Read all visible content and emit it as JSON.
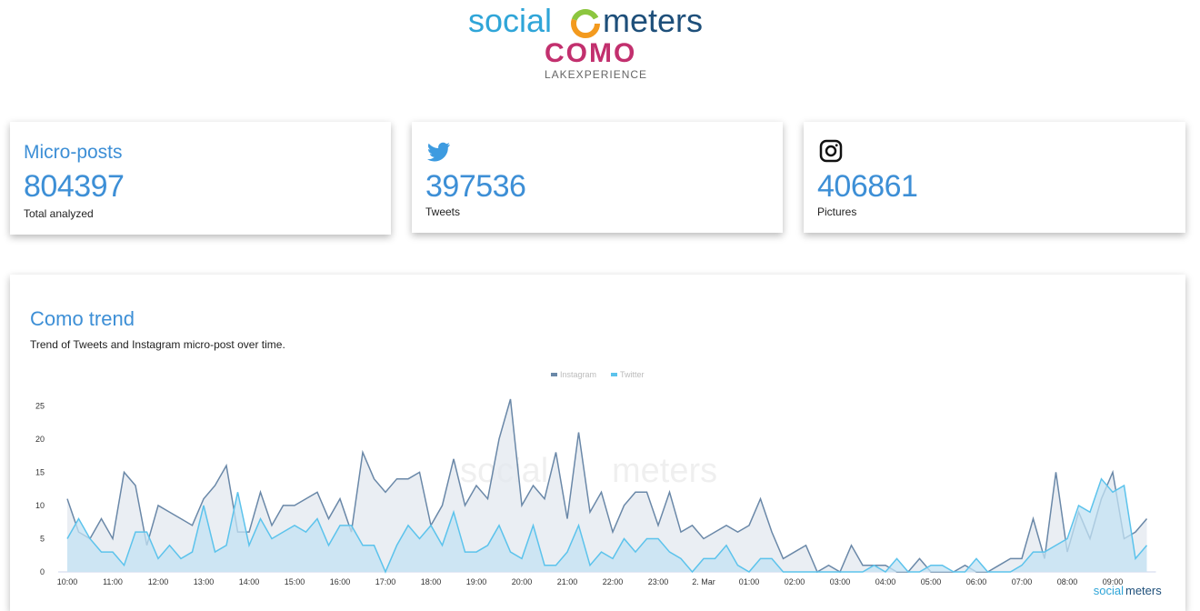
{
  "header": {
    "brand_left": "social",
    "brand_right": "meters",
    "city": "COMO",
    "tagline": "LAKEXPERIENCE"
  },
  "cards": [
    {
      "title": "Micro-posts",
      "value": 804397,
      "caption": "Total analyzed"
    },
    {
      "value": 397536,
      "caption": "Tweets"
    },
    {
      "value": 406861,
      "caption": "Pictures"
    }
  ],
  "chart_data": {
    "type": "area",
    "title": "Como trend",
    "subtitle": "Trend of Tweets and Instagram micro-post over time.",
    "categories": [
      "10:00",
      null,
      null,
      null,
      "11:00",
      null,
      null,
      null,
      "12:00",
      null,
      null,
      null,
      "13:00",
      null,
      null,
      null,
      "14:00",
      null,
      null,
      null,
      "15:00",
      null,
      null,
      null,
      "16:00",
      null,
      null,
      null,
      "17:00",
      null,
      null,
      null,
      "18:00",
      null,
      null,
      null,
      "19:00",
      null,
      null,
      null,
      "20:00",
      null,
      null,
      null,
      "21:00",
      null,
      null,
      null,
      "22:00",
      null,
      null,
      null,
      "23:00",
      null,
      null,
      null,
      "2. Mar",
      null,
      null,
      null,
      "01:00",
      null,
      null,
      null,
      "02:00",
      null,
      null,
      null,
      "03:00",
      null,
      null,
      null,
      "04:00",
      null,
      null,
      null,
      "05:00",
      null,
      null,
      null,
      "06:00",
      null,
      null,
      null,
      "07:00",
      null,
      null,
      null,
      "08:00",
      null,
      null,
      null,
      "09:00",
      null,
      null,
      null
    ],
    "series": [
      {
        "name": "Instagram",
        "color": "#6a88a8",
        "fill": "#e3e8ef",
        "values": [
          11,
          6,
          5,
          8,
          5,
          15,
          13,
          4,
          10,
          9,
          8,
          7,
          11,
          13,
          16,
          6,
          6,
          12,
          7,
          10,
          10,
          11,
          12,
          8,
          11,
          6,
          18,
          14,
          12,
          14,
          14,
          15,
          7,
          10,
          17,
          10,
          13,
          11,
          20,
          26,
          10,
          13,
          11,
          18,
          8,
          21,
          9,
          12,
          6,
          10,
          12,
          12,
          7,
          12,
          6,
          7,
          5,
          6,
          7,
          6,
          7,
          11,
          6,
          2,
          3,
          4,
          0,
          1,
          0,
          4,
          1,
          1,
          1,
          0,
          0,
          2,
          0,
          0,
          0,
          1,
          0,
          0,
          1,
          2,
          2,
          8,
          2,
          15,
          3,
          9,
          5,
          11,
          15,
          5,
          6,
          8
        ]
      },
      {
        "name": "Twitter",
        "color": "#5cc3ec",
        "fill": "#c3e2f3",
        "values": [
          5,
          8,
          5,
          3,
          3,
          1,
          6,
          6,
          2,
          4,
          2,
          3,
          10,
          3,
          4,
          12,
          4,
          8,
          5,
          6,
          7,
          6,
          8,
          4,
          7,
          7,
          4,
          4,
          0,
          4,
          7,
          5,
          7,
          4,
          9,
          3,
          3,
          4,
          7,
          3,
          2,
          7,
          1,
          1,
          3,
          7,
          1,
          3,
          2,
          5,
          3,
          5,
          5,
          3,
          2,
          0,
          2,
          2,
          4,
          1,
          0,
          2,
          2,
          0,
          0,
          0,
          0,
          0,
          0,
          0,
          0,
          1,
          0,
          2,
          0,
          0,
          1,
          1,
          0,
          0,
          2,
          0,
          0,
          0,
          1,
          3,
          3,
          4,
          5,
          10,
          9,
          14,
          12,
          13,
          2,
          4
        ]
      }
    ],
    "ylim": [
      0,
      26
    ],
    "yticks": [
      0,
      5,
      10,
      15,
      20,
      25
    ],
    "legend": "top"
  }
}
